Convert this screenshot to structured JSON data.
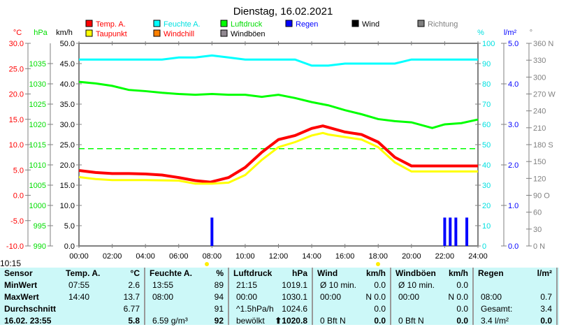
{
  "title": "Dienstag, 16.02.2021",
  "time_label": "10:15",
  "legend": [
    {
      "label": "Temp. A.",
      "color": "#ff0000",
      "text_color": "#ff0000"
    },
    {
      "label": "Feuchte A.",
      "color": "#00ffff",
      "text_color": "#00e0e0"
    },
    {
      "label": "Luftdruck",
      "color": "#00ff00",
      "text_color": "#00dd00"
    },
    {
      "label": "Regen",
      "color": "#0000ff",
      "text_color": "#0000ff"
    },
    {
      "label": "Wind",
      "color": "#000000",
      "text_color": "#000000"
    },
    {
      "label": "Richtung",
      "color": "#808080",
      "text_color": "#808080"
    },
    {
      "label": "Taupunkt",
      "color": "#ffff00",
      "text_color": "#ff0000"
    },
    {
      "label": "Windchill",
      "color": "#ff8000",
      "text_color": "#ff0000"
    },
    {
      "label": "Windböen",
      "color": "#908890",
      "text_color": "#000000"
    }
  ],
  "chart_data": {
    "type": "line",
    "title": "Dienstag, 16.02.2021",
    "x_ticks": [
      "00:00",
      "02:00",
      "04:00",
      "06:00",
      "08:00",
      "10:00",
      "12:00",
      "14:00",
      "16:00",
      "18:00",
      "20:00",
      "22:00",
      "24:00"
    ],
    "axes": {
      "temp": {
        "unit": "°C",
        "range": [
          -10,
          30
        ],
        "ticks": [
          "30.0",
          "25.0",
          "20.0",
          "15.0",
          "10.0",
          "5.0",
          "0.0",
          "-5.0",
          "-10.0"
        ]
      },
      "pressure": {
        "unit": "hPa",
        "range": [
          990,
          1040
        ],
        "ticks": [
          "1035",
          "1030",
          "1025",
          "1020",
          "1015",
          "1010",
          "1005",
          "1000",
          "995",
          "990"
        ]
      },
      "wind": {
        "unit": "km/h",
        "range": [
          0,
          50
        ],
        "ticks": [
          "50.0",
          "45.0",
          "40.0",
          "35.0",
          "30.0",
          "25.0",
          "20.0",
          "15.0",
          "10.0",
          "5.0",
          "0.0"
        ]
      },
      "humidity": {
        "unit": "%",
        "range": [
          0,
          100
        ],
        "ticks": [
          "100",
          "90",
          "80",
          "70",
          "60",
          "50",
          "40",
          "30",
          "20",
          "10",
          "0"
        ]
      },
      "rain": {
        "unit": "l/m²",
        "range": [
          0,
          5
        ],
        "ticks": [
          "5.0",
          "4.0",
          "3.0",
          "2.0",
          "1.0",
          "0.0"
        ]
      },
      "direction": {
        "unit": "°",
        "range": [
          0,
          360
        ],
        "ticks": [
          "360 N",
          "330",
          "300",
          "270 W",
          "240",
          "210",
          "180 S",
          "150",
          "120",
          "90  O",
          "60",
          "30",
          "0   N"
        ]
      }
    },
    "series": [
      {
        "name": "Temp. A.",
        "axis": "temp",
        "color": "#ff0000",
        "x": [
          0,
          1,
          2,
          3,
          4,
          5,
          6,
          7,
          7.9,
          9,
          10,
          11,
          12,
          13,
          14,
          14.67,
          15,
          16,
          17,
          18,
          19,
          20,
          24
        ],
        "y": [
          4.9,
          4.5,
          4.3,
          4.3,
          4.2,
          4.0,
          3.5,
          2.9,
          2.6,
          3.5,
          5.5,
          8.5,
          11.0,
          11.8,
          13.2,
          13.7,
          13.4,
          12.5,
          12.0,
          10.5,
          7.5,
          5.8,
          5.8
        ]
      },
      {
        "name": "Taupunkt",
        "axis": "temp",
        "color": "#ffff00",
        "x": [
          0,
          1,
          2,
          4,
          6,
          7,
          8,
          9,
          10,
          11,
          12,
          13,
          14,
          14.67,
          15,
          16,
          17,
          18,
          19,
          20,
          24
        ],
        "y": [
          3.6,
          3.2,
          3.0,
          3.0,
          2.9,
          2.3,
          2.3,
          2.5,
          4.0,
          7.0,
          9.5,
          10.5,
          11.8,
          12.3,
          12.0,
          11.5,
          11.0,
          9.5,
          6.5,
          4.7,
          4.7
        ]
      },
      {
        "name": "Feuchte A.",
        "axis": "humidity",
        "color": "#00ffff",
        "x": [
          0,
          5,
          6,
          7,
          8,
          9,
          10,
          11,
          12,
          13,
          14,
          15,
          16,
          18,
          19,
          20,
          24
        ],
        "y": [
          92,
          92,
          93,
          93,
          94,
          93,
          92,
          92,
          92,
          92,
          89,
          89,
          90,
          90,
          90,
          92,
          92
        ]
      },
      {
        "name": "Luftdruck",
        "axis": "pressure",
        "color": "#00ff00",
        "x": [
          0,
          1,
          2,
          3,
          4,
          5,
          6,
          7,
          8,
          9,
          10,
          11,
          12,
          13,
          14,
          15,
          16,
          17,
          18,
          19,
          20,
          21.25,
          22,
          23,
          24
        ],
        "y": [
          1030.5,
          1030.1,
          1029.5,
          1028.5,
          1028.2,
          1027.8,
          1027.5,
          1027.3,
          1027.5,
          1027.3,
          1027.3,
          1026.8,
          1027.3,
          1026.5,
          1025.5,
          1024.7,
          1023.5,
          1022.5,
          1021.3,
          1020.8,
          1020.5,
          1019.1,
          1020.0,
          1020.3,
          1021.2
        ]
      },
      {
        "name": "Regen",
        "axis": "rain",
        "color": "#0000ff",
        "type": "bar",
        "x": [
          8,
          22,
          22.33,
          22.67,
          23.33
        ],
        "y": [
          0.7,
          0.7,
          0.7,
          0.7,
          0.7
        ]
      }
    ],
    "reference_line": {
      "axis": "pressure",
      "value": 1014,
      "color": "#00ff00",
      "style": "dashed"
    }
  },
  "table": {
    "columns": [
      {
        "header": "Sensor",
        "unit": "",
        "rows": [
          "MinWert",
          "MaxWert",
          "Durchschnitt",
          "16.02. 23:55"
        ]
      },
      {
        "header": "Temp. A.",
        "unit": "°C",
        "left": [
          "07:55",
          "14:40",
          "",
          ""
        ],
        "right": [
          "2.6",
          "13.7",
          "6.77",
          "5.8"
        ]
      },
      {
        "header": "Feuchte A.",
        "unit": "%",
        "left": [
          "13:55",
          "08:00",
          "",
          "6.59 g/m³"
        ],
        "right": [
          "89",
          "94",
          "91",
          "92"
        ]
      },
      {
        "header": "Luftdruck",
        "unit": "hPa",
        "left": [
          "21:15",
          "00:00",
          "^1.5hPa/h",
          "bewölkt"
        ],
        "right": [
          "1019.1",
          "1030.1",
          "1024.6",
          "⬆1020.8"
        ]
      },
      {
        "header": "Wind",
        "unit": "km/h",
        "left": [
          "Ø 10 min.",
          "00:00",
          "",
          "0 Bft N"
        ],
        "right": [
          "0.0",
          "N 0.0",
          "0.0",
          "0.0"
        ]
      },
      {
        "header": "Windböen",
        "unit": "km/h",
        "left": [
          "Ø 10 min.",
          "00:00",
          "",
          "0 Bft N"
        ],
        "right": [
          "0.0",
          "N 0.0",
          "0.0",
          "0.0"
        ]
      },
      {
        "header": "Regen",
        "unit": "l/m²",
        "left": [
          "",
          "08:00",
          "Gesamt:",
          "3.4 l/m²"
        ],
        "right": [
          "",
          "0.7",
          "3.4",
          "0.0"
        ]
      }
    ]
  }
}
